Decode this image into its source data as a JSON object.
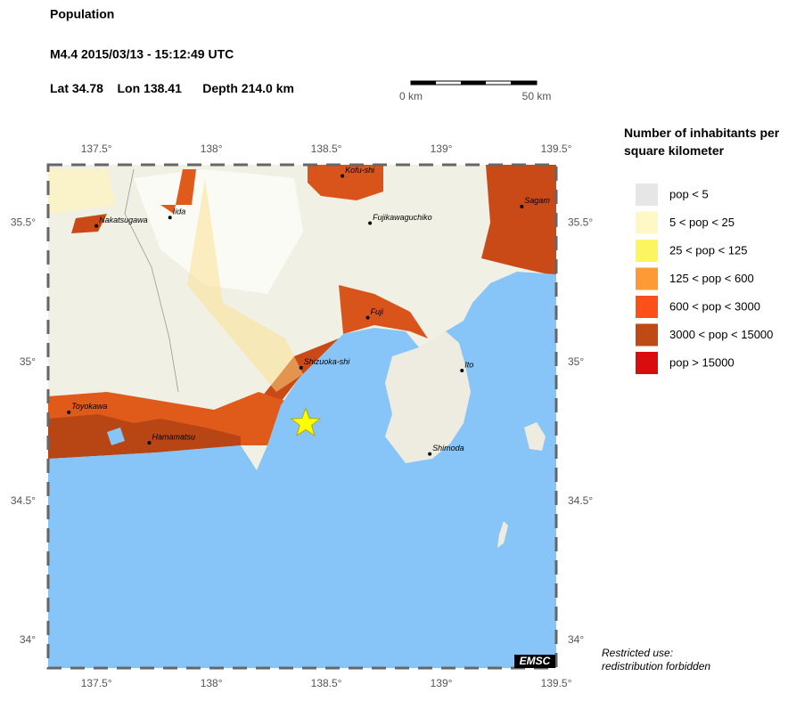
{
  "header": {
    "title": "Population",
    "event": "M4.4  2015/03/13 - 15:12:49 UTC",
    "lat_label": "Lat",
    "lat": 34.78,
    "lon_label": "Lon",
    "lon": 138.41,
    "depth_label": "Depth",
    "depth": "214.0 km"
  },
  "scale_bar": {
    "start": "0 km",
    "end": "50 km"
  },
  "map": {
    "xlim": [
      137.29,
      139.5
    ],
    "ylim": [
      33.9,
      35.71
    ],
    "xticks": [
      {
        "value": 137.5,
        "label": "137.5°"
      },
      {
        "value": 138,
        "label": "138°"
      },
      {
        "value": 138.5,
        "label": "138.5°"
      },
      {
        "value": 139,
        "label": "139°"
      },
      {
        "value": 139.5,
        "label": "139.5°"
      }
    ],
    "yticks": [
      {
        "value": 34,
        "label": "34°"
      },
      {
        "value": 34.5,
        "label": "34.5°"
      },
      {
        "value": 35,
        "label": "35°"
      },
      {
        "value": 35.5,
        "label": "35.5°"
      }
    ],
    "cities": [
      {
        "name": "Kofu-shi",
        "lon": 138.57,
        "lat": 35.67
      },
      {
        "name": "Iida",
        "lon": 137.82,
        "lat": 35.52
      },
      {
        "name": "Nakatsugawa",
        "lon": 137.5,
        "lat": 35.49
      },
      {
        "name": "Fujikawaguchiko",
        "lon": 138.69,
        "lat": 35.5
      },
      {
        "name": "Sagam",
        "lon": 139.35,
        "lat": 35.56
      },
      {
        "name": "Fuji",
        "lon": 138.68,
        "lat": 35.16
      },
      {
        "name": "Shizuoka-shi",
        "lon": 138.39,
        "lat": 34.98
      },
      {
        "name": "Ito",
        "lon": 139.09,
        "lat": 34.97
      },
      {
        "name": "Toyokawa",
        "lon": 137.38,
        "lat": 34.82
      },
      {
        "name": "Hamamatsu",
        "lon": 137.73,
        "lat": 34.71
      },
      {
        "name": "Shimoda",
        "lon": 138.95,
        "lat": 34.67
      }
    ],
    "badge": "EMSC"
  },
  "legend": {
    "title": "Number of inhabitants per square kilometer",
    "entries": [
      {
        "label": "pop < 5",
        "color": "#e6e6e6"
      },
      {
        "label": "5 < pop < 25",
        "color": "#fdf8c4"
      },
      {
        "label": "25 < pop < 125",
        "color": "#fdf560"
      },
      {
        "label": "125 < pop < 600",
        "color": "#fd9a35"
      },
      {
        "label": "600 < pop < 3000",
        "color": "#fb5018"
      },
      {
        "label": "3000 < pop < 15000",
        "color": "#bf4a14"
      },
      {
        "label": "pop > 15000",
        "color": "#d90d0d"
      }
    ]
  },
  "note": "Restricted use: redistribution forbidden"
}
